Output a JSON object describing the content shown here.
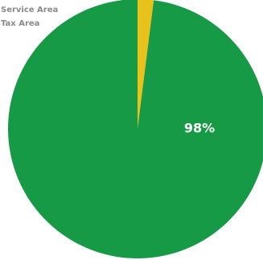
{
  "chart_data": {
    "type": "pie",
    "categories": [
      "Service Area",
      "Tax Area"
    ],
    "values": [
      2,
      98
    ],
    "data_labels": [
      "",
      "98%"
    ],
    "colors": [
      "#e8c21a",
      "#169a45"
    ],
    "legend_placement": "top-left",
    "start_angle_deg": 0
  }
}
